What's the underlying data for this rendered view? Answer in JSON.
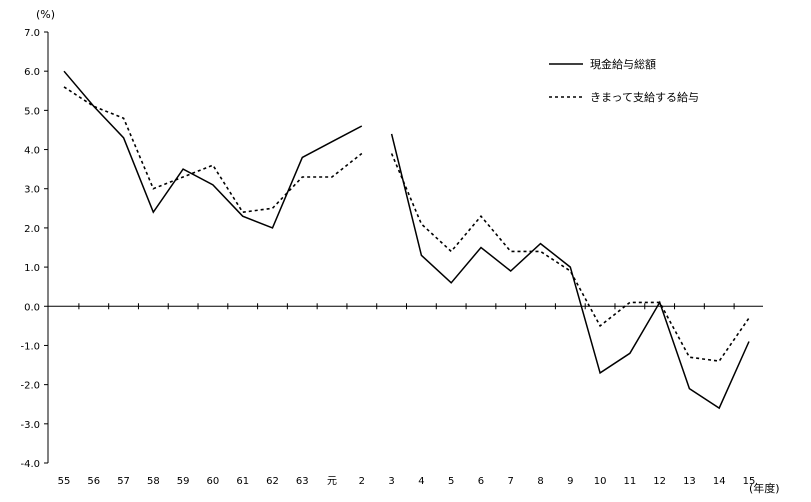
{
  "chart_data": {
    "type": "line",
    "title": "",
    "ylabel": "(%)",
    "xlabel": "(年度)",
    "ylim": [
      -4.0,
      7.0
    ],
    "yticks": [
      "7.0",
      "6.0",
      "5.0",
      "4.0",
      "3.0",
      "2.0",
      "1.0",
      "0.0",
      "-1.0",
      "-2.0",
      "-3.0",
      "-4.0"
    ],
    "categories": [
      "55",
      "56",
      "57",
      "58",
      "59",
      "60",
      "61",
      "62",
      "63",
      "元",
      "2",
      "3",
      "4",
      "5",
      "6",
      "7",
      "8",
      "9",
      "10",
      "11",
      "12",
      "13",
      "14",
      "15"
    ],
    "legend_position": "top-right",
    "grid": false,
    "series": [
      {
        "name": "現金給与総額",
        "style": "solid",
        "color": "#000000",
        "values": [
          6.0,
          5.1,
          4.3,
          2.4,
          3.5,
          3.1,
          2.3,
          2.0,
          3.8,
          4.2,
          4.6,
          4.4,
          1.3,
          0.6,
          1.5,
          0.9,
          1.6,
          1.0,
          -1.7,
          -1.2,
          0.1,
          -2.1,
          -2.6,
          -0.9
        ],
        "gap_after_index": 10
      },
      {
        "name": "きまって支給する給与",
        "style": "dotted",
        "color": "#000000",
        "values": [
          5.6,
          5.1,
          4.8,
          3.0,
          3.3,
          3.6,
          2.4,
          2.5,
          3.3,
          3.3,
          3.9,
          3.9,
          2.1,
          1.4,
          2.3,
          1.4,
          1.4,
          0.9,
          -0.5,
          0.1,
          0.1,
          -1.3,
          -1.4,
          -0.3
        ],
        "gap_after_index": 10
      }
    ]
  }
}
